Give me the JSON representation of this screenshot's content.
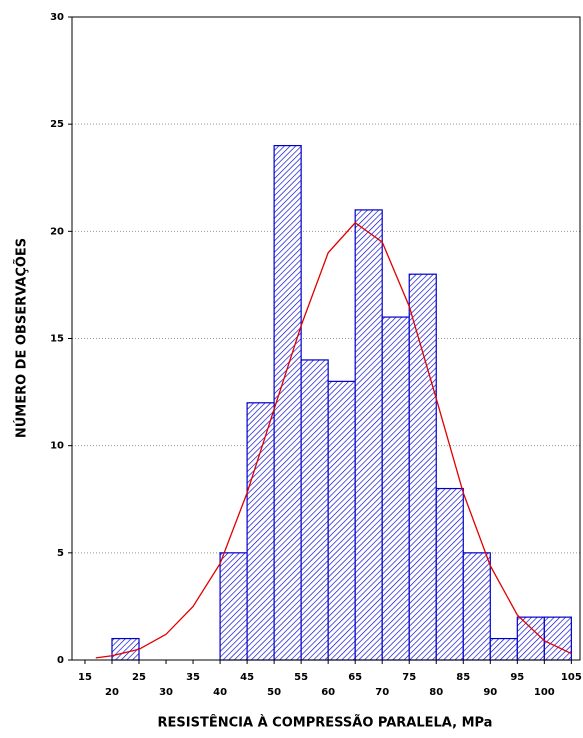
{
  "chart_data": {
    "type": "histogram",
    "x_label": "RESISTÊNCIA À COMPRESSÃO PARALELA, MPa",
    "y_label": "NÚMERO DE OBSERVAÇÕES",
    "bins": [
      15,
      20,
      25,
      30,
      35,
      40,
      45,
      50,
      55,
      60,
      65,
      70,
      75,
      80,
      85,
      90,
      95,
      100,
      105
    ],
    "values": [
      0,
      1,
      0,
      0,
      0,
      5,
      12,
      24,
      14,
      13,
      21,
      16,
      18,
      8,
      5,
      1,
      2,
      2
    ],
    "color": "#0000cc",
    "xlim": [
      12.6,
      106.6
    ],
    "ylim": [
      0,
      30
    ],
    "xticks": [
      15,
      20,
      25,
      30,
      35,
      40,
      45,
      50,
      55,
      60,
      65,
      70,
      75,
      80,
      85,
      90,
      95,
      100,
      105
    ],
    "yticks": [
      0,
      5,
      10,
      15,
      20,
      25,
      30
    ],
    "grid": true,
    "curve": {
      "color": "#e00000",
      "x": [
        17,
        20,
        25,
        30,
        35,
        40,
        45,
        50,
        55,
        60,
        65,
        70,
        75,
        80,
        85,
        90,
        95,
        100,
        105
      ],
      "y": [
        0.1,
        0.2,
        0.5,
        1.2,
        2.5,
        4.5,
        7.8,
        11.7,
        15.6,
        19,
        20.4,
        19.5,
        16.5,
        12.2,
        7.8,
        4.4,
        2.1,
        0.9,
        0.3
      ]
    }
  }
}
